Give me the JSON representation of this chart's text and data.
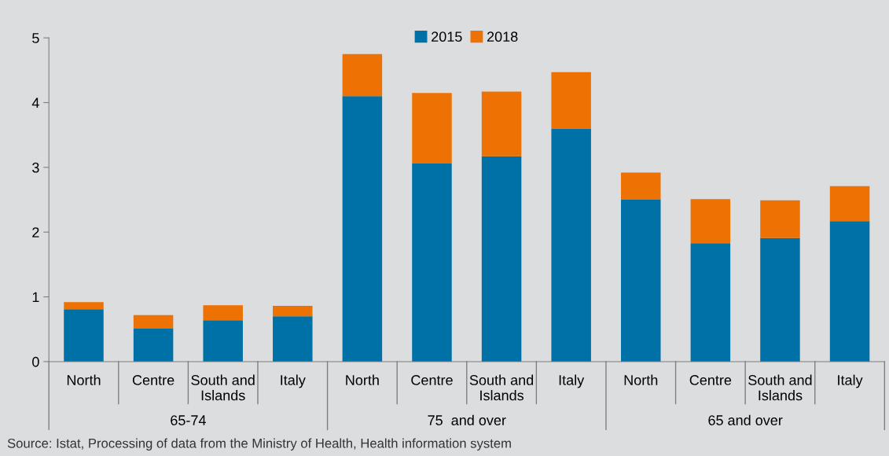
{
  "chart_data": {
    "type": "bar",
    "stacked": true,
    "categories": [
      "North",
      "Centre",
      "South and\nIslands",
      "Italy",
      "North",
      "Centre",
      "South and\nIslands",
      "Italy",
      "North",
      "Centre",
      "South and\nIslands",
      "Italy"
    ],
    "series": [
      {
        "name": "2015",
        "color": "#0071a7",
        "values": [
          0.81,
          0.51,
          0.64,
          0.7,
          4.1,
          3.06,
          3.17,
          3.6,
          2.5,
          1.83,
          1.91,
          2.17
        ]
      },
      {
        "name": "2018",
        "color": "#ee7203",
        "values": [
          0.11,
          0.21,
          0.23,
          0.16,
          0.65,
          1.09,
          1.0,
          0.87,
          0.42,
          0.68,
          0.58,
          0.54
        ]
      }
    ],
    "ylim": [
      0,
      5
    ],
    "yticks": [
      0,
      1,
      2,
      3,
      4,
      5
    ],
    "grid": false,
    "legend": "top",
    "annotations": [
      "65-74",
      "75  and over",
      "65 and over",
      "Source: Istat, Processing of data from the Ministry of Health, Health information system"
    ]
  }
}
